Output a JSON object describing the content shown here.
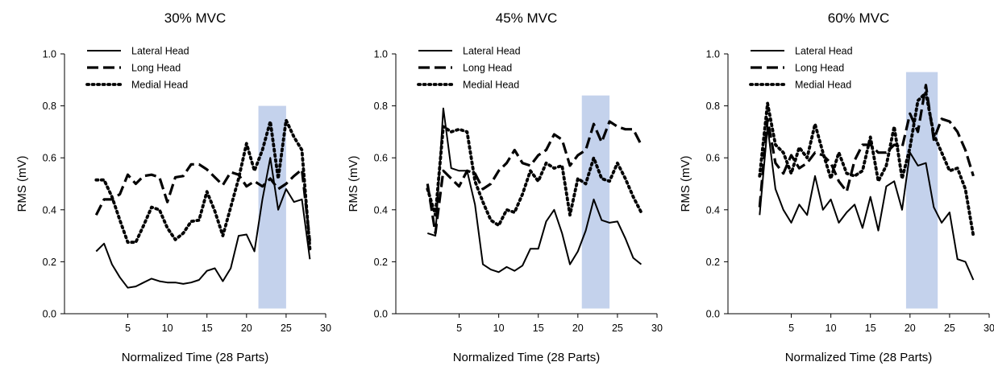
{
  "colors": {
    "line": "#000000",
    "highlight": "#9fb7e0"
  },
  "chart_data": [
    {
      "type": "line",
      "title": "30% MVC",
      "xlabel": "Normalized Time (28 Parts)",
      "ylabel": "RMS (mV)",
      "xlim": [
        -3,
        30
      ],
      "ylim": [
        0.0,
        1.0
      ],
      "xticks": [
        "5",
        "10",
        "15",
        "20",
        "25",
        "30"
      ],
      "yticks": [
        "0.0",
        "0.2",
        "0.4",
        "0.6",
        "0.8",
        "1.0"
      ],
      "legend_position": "top-left",
      "highlight_band": {
        "x0": 21.5,
        "x1": 25.0,
        "y0": 0.02,
        "y1": 0.8
      },
      "x": [
        1,
        2,
        3,
        4,
        5,
        6,
        7,
        8,
        9,
        10,
        11,
        12,
        13,
        14,
        15,
        16,
        17,
        18,
        19,
        20,
        21,
        22,
        23,
        24,
        25,
        26,
        27,
        28
      ],
      "series": [
        {
          "name": "Lateral Head",
          "style": "solid",
          "values": [
            0.24,
            0.27,
            0.19,
            0.14,
            0.1,
            0.105,
            0.12,
            0.135,
            0.125,
            0.12,
            0.12,
            0.115,
            0.12,
            0.13,
            0.165,
            0.175,
            0.125,
            0.175,
            0.3,
            0.305,
            0.24,
            0.44,
            0.6,
            0.4,
            0.48,
            0.43,
            0.44,
            0.21
          ]
        },
        {
          "name": "Long Head",
          "style": "dashed",
          "values": [
            0.38,
            0.44,
            0.44,
            0.46,
            0.535,
            0.5,
            0.53,
            0.535,
            0.525,
            0.43,
            0.525,
            0.53,
            0.575,
            0.575,
            0.555,
            0.525,
            0.495,
            0.545,
            0.535,
            0.49,
            0.51,
            0.49,
            0.52,
            0.48,
            0.5,
            0.53,
            0.555,
            0.28
          ]
        },
        {
          "name": "Medial Head",
          "style": "dotted",
          "values": [
            0.515,
            0.515,
            0.45,
            0.36,
            0.275,
            0.275,
            0.34,
            0.41,
            0.4,
            0.33,
            0.285,
            0.31,
            0.355,
            0.36,
            0.47,
            0.395,
            0.3,
            0.41,
            0.52,
            0.655,
            0.55,
            0.63,
            0.74,
            0.52,
            0.745,
            0.68,
            0.63,
            0.25
          ]
        }
      ]
    },
    {
      "type": "line",
      "title": "45% MVC",
      "xlabel": "Normalized Time (28 Parts)",
      "ylabel": "RMS (mV)",
      "xlim": [
        -3,
        30
      ],
      "ylim": [
        0.0,
        1.0
      ],
      "xticks": [
        "5",
        "10",
        "15",
        "20",
        "25",
        "30"
      ],
      "yticks": [
        "0.0",
        "0.2",
        "0.4",
        "0.6",
        "0.8",
        "1.0"
      ],
      "legend_position": "top-left",
      "highlight_band": {
        "x0": 20.5,
        "x1": 24.0,
        "y0": 0.02,
        "y1": 0.84
      },
      "x": [
        1,
        2,
        3,
        4,
        5,
        6,
        7,
        8,
        9,
        10,
        11,
        12,
        13,
        14,
        15,
        16,
        17,
        18,
        19,
        20,
        21,
        22,
        23,
        24,
        25,
        26,
        27,
        28
      ],
      "series": [
        {
          "name": "Lateral Head",
          "style": "solid",
          "values": [
            0.31,
            0.3,
            0.79,
            0.56,
            0.55,
            0.55,
            0.42,
            0.19,
            0.17,
            0.16,
            0.18,
            0.165,
            0.185,
            0.25,
            0.25,
            0.355,
            0.4,
            0.31,
            0.19,
            0.24,
            0.32,
            0.44,
            0.36,
            0.35,
            0.355,
            0.29,
            0.215,
            0.19
          ]
        },
        {
          "name": "Long Head",
          "style": "dashed",
          "values": [
            0.5,
            0.31,
            0.55,
            0.52,
            0.49,
            0.55,
            0.54,
            0.48,
            0.5,
            0.55,
            0.58,
            0.63,
            0.58,
            0.57,
            0.61,
            0.63,
            0.69,
            0.67,
            0.57,
            0.61,
            0.63,
            0.73,
            0.66,
            0.74,
            0.72,
            0.71,
            0.71,
            0.65
          ]
        },
        {
          "name": "Medial Head",
          "style": "dotted",
          "values": [
            0.48,
            0.38,
            0.72,
            0.7,
            0.71,
            0.7,
            0.51,
            0.43,
            0.36,
            0.34,
            0.4,
            0.39,
            0.46,
            0.55,
            0.51,
            0.58,
            0.56,
            0.57,
            0.38,
            0.52,
            0.5,
            0.6,
            0.52,
            0.51,
            0.58,
            0.52,
            0.45,
            0.39
          ]
        }
      ]
    },
    {
      "type": "line",
      "title": "60% MVC",
      "xlabel": "Normalized Time (28 Parts)",
      "ylabel": "RMS (mV)",
      "xlim": [
        -3,
        30
      ],
      "ylim": [
        0.0,
        1.0
      ],
      "xticks": [
        "5",
        "10",
        "15",
        "20",
        "25",
        "30"
      ],
      "yticks": [
        "0.0",
        "0.2",
        "0.4",
        "0.6",
        "0.8",
        "1.0"
      ],
      "legend_position": "top-left",
      "highlight_band": {
        "x0": 19.5,
        "x1": 23.5,
        "y0": 0.02,
        "y1": 0.93
      },
      "x": [
        1,
        2,
        3,
        4,
        5,
        6,
        7,
        8,
        9,
        10,
        11,
        12,
        13,
        14,
        15,
        16,
        17,
        18,
        19,
        20,
        21,
        22,
        23,
        24,
        25,
        26,
        27,
        28
      ],
      "series": [
        {
          "name": "Lateral Head",
          "style": "solid",
          "values": [
            0.38,
            0.72,
            0.48,
            0.4,
            0.35,
            0.42,
            0.38,
            0.53,
            0.4,
            0.44,
            0.35,
            0.39,
            0.42,
            0.33,
            0.45,
            0.32,
            0.49,
            0.51,
            0.4,
            0.62,
            0.57,
            0.58,
            0.41,
            0.35,
            0.39,
            0.21,
            0.2,
            0.13
          ]
        },
        {
          "name": "Long Head",
          "style": "dashed",
          "values": [
            0.41,
            0.75,
            0.58,
            0.54,
            0.61,
            0.56,
            0.58,
            0.62,
            0.61,
            0.58,
            0.51,
            0.47,
            0.59,
            0.65,
            0.65,
            0.62,
            0.62,
            0.65,
            0.64,
            0.77,
            0.7,
            0.88,
            0.67,
            0.75,
            0.74,
            0.7,
            0.63,
            0.53
          ]
        },
        {
          "name": "Medial Head",
          "style": "dotted",
          "values": [
            0.53,
            0.81,
            0.65,
            0.62,
            0.54,
            0.64,
            0.6,
            0.73,
            0.62,
            0.52,
            0.62,
            0.54,
            0.53,
            0.55,
            0.68,
            0.51,
            0.57,
            0.72,
            0.52,
            0.64,
            0.82,
            0.85,
            0.69,
            0.62,
            0.55,
            0.56,
            0.48,
            0.3
          ]
        }
      ]
    }
  ]
}
